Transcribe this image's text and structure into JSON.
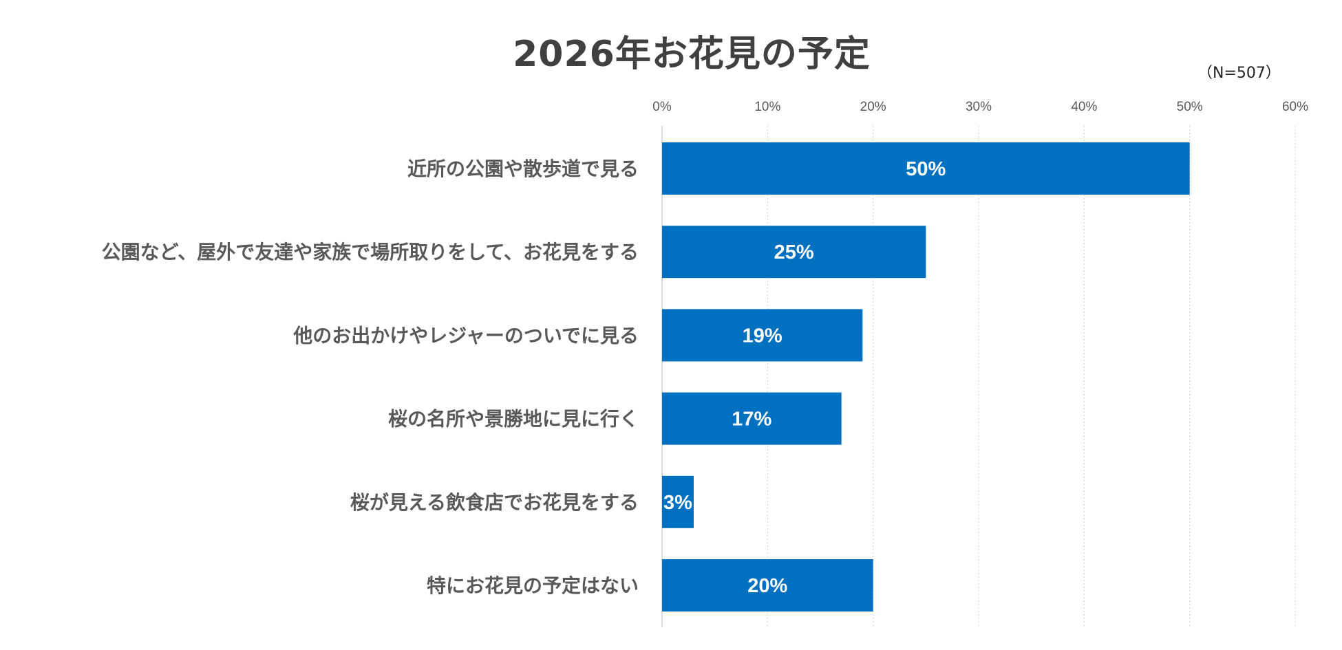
{
  "chart_data": {
    "type": "bar",
    "orientation": "horizontal",
    "title": "2026年お花見の予定",
    "note": "（N=507）",
    "categories": [
      "近所の公園や散歩道で見る",
      "公園など、屋外で友達や家族で場所取りをして、お花見をする",
      "他のお出かけやレジャーのついでに見る",
      "桜の名所や景勝地に見に行く",
      "桜が見える飲食店でお花見をする",
      "特にお花見の予定はない"
    ],
    "values": [
      50,
      25,
      19,
      17,
      3,
      20
    ],
    "value_labels": [
      "50%",
      "25%",
      "19%",
      "17%",
      "3%",
      "20%"
    ],
    "xlim": [
      0,
      60
    ],
    "xticks": [
      "0%",
      "10%",
      "20%",
      "30%",
      "40%",
      "50%",
      "60%"
    ],
    "grid": true,
    "legend": "none",
    "bar_color": "#0070C0",
    "value_label_color": "#FFFFFF"
  }
}
